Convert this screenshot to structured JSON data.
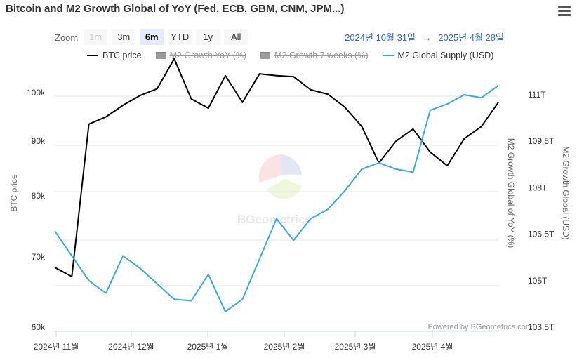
{
  "title": "Bitcoin and M2 Growth Global of YoY (Fed, ECB, GBM, CNM, JPM...)",
  "zoom": {
    "label": "Zoom",
    "buttons": [
      {
        "label": "1m",
        "state": "disabled"
      },
      {
        "label": "3m",
        "state": "normal"
      },
      {
        "label": "6m",
        "state": "active"
      },
      {
        "label": "YTD",
        "state": "normal"
      },
      {
        "label": "1y",
        "state": "normal"
      },
      {
        "label": "All",
        "state": "normal"
      }
    ]
  },
  "range": {
    "from": "2024년 10월 31일",
    "arrow": "→",
    "to": "2025년 4월 28일"
  },
  "legend": [
    {
      "name": "BTC price",
      "color": "#000000",
      "visible": true
    },
    {
      "name": "M2 Growth YoY (%)",
      "color": "#999999",
      "visible": false
    },
    {
      "name": "M2 Growth 7 weeks (%)",
      "color": "#999999",
      "visible": false
    },
    {
      "name": "M2 Global Supply (USD)",
      "color": "#3aa8e0",
      "visible": true
    }
  ],
  "credit": "Powered by BGeometrics.com",
  "watermark": "BGeometrics",
  "chart_data": {
    "type": "line",
    "x_ticks": [
      "2024년 11월",
      "2024년 12월",
      "2025년 1월",
      "2025년 2월",
      "2025년 3월",
      "2025년 4월"
    ],
    "left_axis": {
      "title": "BTC price",
      "ticks": [
        "100k",
        "90k",
        "80k",
        "70k",
        "60k"
      ],
      "range": [
        60000,
        100000
      ]
    },
    "right_axis_1": {
      "title": "M2 Growth Global of YoY (%)"
    },
    "right_axis_2": {
      "title": "M2 Growth Global (USD)",
      "ticks": [
        "111T",
        "109.5T",
        "108T",
        "106.5T",
        "105T",
        "103.5T"
      ],
      "range": [
        103.5,
        111
      ]
    },
    "series": [
      {
        "name": "BTC price",
        "axis": "left",
        "color": "#000000",
        "values": [
          68500,
          67200,
          93500,
          95000,
          97400,
          99400,
          100800,
          107000,
          98700,
          96800,
          103500,
          98000,
          103900,
          103500,
          103300,
          100600,
          99700,
          97000,
          93000,
          86000,
          90000,
          92500,
          88000,
          85500,
          90500,
          93000,
          98000
        ]
      },
      {
        "name": "M2 Global Supply (USD)",
        "axis": "right",
        "color": "#3aa8e0",
        "values": [
          106.6,
          105.8,
          105.0,
          104.6,
          105.8,
          105.4,
          104.9,
          104.4,
          104.35,
          105.2,
          104.0,
          104.4,
          105.7,
          107.0,
          106.3,
          107.0,
          107.3,
          107.9,
          108.6,
          108.8,
          108.6,
          108.5,
          110.5,
          110.7,
          111.0,
          110.9,
          111.3
        ]
      }
    ],
    "grid": true,
    "legend_position": "top-center"
  }
}
